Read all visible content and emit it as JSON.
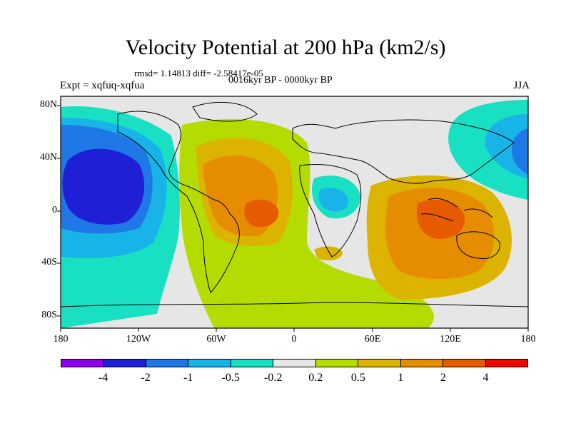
{
  "title": "Velocity Potential at 200 hPa (km2/s)",
  "stats": "rmsd= 1.14813 diff= -2.58417e-05",
  "experiment": "Expt = xqfuq-xqfua",
  "period": "0016kyr BP - 0000kyr BP",
  "season": "JJA",
  "lat_labels": [
    "80N",
    "40N",
    "0",
    "40S",
    "80S"
  ],
  "lon_labels": [
    "180",
    "120W",
    "60W",
    "0",
    "60E",
    "120E",
    "180"
  ],
  "colorbar": {
    "colors": [
      "#8b00e6",
      "#1f1fd6",
      "#1e78e6",
      "#18b4e8",
      "#19e0c3",
      "#e6e6e6",
      "#b4dc00",
      "#dcb400",
      "#e68c00",
      "#e65a00",
      "#e60a00"
    ],
    "labels": [
      "-4",
      "-2",
      "-1",
      "-0.5",
      "-0.2",
      "0.2",
      "0.5",
      "1",
      "2",
      "4"
    ]
  }
}
